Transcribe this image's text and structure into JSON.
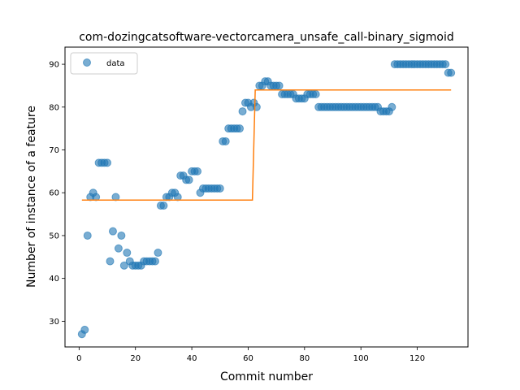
{
  "chart_data": {
    "type": "scatter",
    "title": "com-dozingcatsoftware-vectorcamera_unsafe_call-binary_sigmoid",
    "xlabel": "Commit number",
    "ylabel": "Number of instance of a feature",
    "xlim": [
      -5,
      138
    ],
    "ylim": [
      24,
      94
    ],
    "xticks": [
      0,
      20,
      40,
      60,
      80,
      100,
      120
    ],
    "yticks": [
      30,
      40,
      50,
      60,
      70,
      80,
      90
    ],
    "legend": {
      "placement": "top-left",
      "entries": [
        "data"
      ]
    },
    "colors": {
      "data": "#1f77b4",
      "fit": "#ff7f0e"
    },
    "series": [
      {
        "name": "data",
        "kind": "scatter",
        "points": [
          [
            1,
            27
          ],
          [
            2,
            28
          ],
          [
            3,
            50
          ],
          [
            4,
            59
          ],
          [
            5,
            60
          ],
          [
            6,
            59
          ],
          [
            7,
            67
          ],
          [
            8,
            67
          ],
          [
            9,
            67
          ],
          [
            10,
            67
          ],
          [
            11,
            44
          ],
          [
            12,
            51
          ],
          [
            13,
            59
          ],
          [
            14,
            47
          ],
          [
            15,
            50
          ],
          [
            16,
            43
          ],
          [
            17,
            46
          ],
          [
            18,
            44
          ],
          [
            19,
            43
          ],
          [
            20,
            43
          ],
          [
            21,
            43
          ],
          [
            22,
            43
          ],
          [
            23,
            44
          ],
          [
            24,
            44
          ],
          [
            25,
            44
          ],
          [
            26,
            44
          ],
          [
            27,
            44
          ],
          [
            28,
            46
          ],
          [
            29,
            57
          ],
          [
            30,
            57
          ],
          [
            31,
            59
          ],
          [
            32,
            59
          ],
          [
            33,
            60
          ],
          [
            34,
            60
          ],
          [
            35,
            59
          ],
          [
            36,
            64
          ],
          [
            37,
            64
          ],
          [
            38,
            63
          ],
          [
            39,
            63
          ],
          [
            40,
            65
          ],
          [
            41,
            65
          ],
          [
            42,
            65
          ],
          [
            43,
            60
          ],
          [
            44,
            61
          ],
          [
            45,
            61
          ],
          [
            46,
            61
          ],
          [
            47,
            61
          ],
          [
            48,
            61
          ],
          [
            49,
            61
          ],
          [
            50,
            61
          ],
          [
            51,
            72
          ],
          [
            52,
            72
          ],
          [
            53,
            75
          ],
          [
            54,
            75
          ],
          [
            55,
            75
          ],
          [
            56,
            75
          ],
          [
            57,
            75
          ],
          [
            58,
            79
          ],
          [
            59,
            81
          ],
          [
            60,
            81
          ],
          [
            61,
            80
          ],
          [
            62,
            81
          ],
          [
            63,
            80
          ],
          [
            64,
            85
          ],
          [
            65,
            85
          ],
          [
            66,
            86
          ],
          [
            67,
            86
          ],
          [
            68,
            85
          ],
          [
            69,
            85
          ],
          [
            70,
            85
          ],
          [
            71,
            85
          ],
          [
            72,
            83
          ],
          [
            73,
            83
          ],
          [
            74,
            83
          ],
          [
            75,
            83
          ],
          [
            76,
            83
          ],
          [
            77,
            82
          ],
          [
            78,
            82
          ],
          [
            79,
            82
          ],
          [
            80,
            82
          ],
          [
            81,
            83
          ],
          [
            82,
            83
          ],
          [
            83,
            83
          ],
          [
            84,
            83
          ],
          [
            85,
            80
          ],
          [
            86,
            80
          ],
          [
            87,
            80
          ],
          [
            88,
            80
          ],
          [
            89,
            80
          ],
          [
            90,
            80
          ],
          [
            91,
            80
          ],
          [
            92,
            80
          ],
          [
            93,
            80
          ],
          [
            94,
            80
          ],
          [
            95,
            80
          ],
          [
            96,
            80
          ],
          [
            97,
            80
          ],
          [
            98,
            80
          ],
          [
            99,
            80
          ],
          [
            100,
            80
          ],
          [
            101,
            80
          ],
          [
            102,
            80
          ],
          [
            103,
            80
          ],
          [
            104,
            80
          ],
          [
            105,
            80
          ],
          [
            106,
            80
          ],
          [
            107,
            79
          ],
          [
            108,
            79
          ],
          [
            109,
            79
          ],
          [
            110,
            79
          ],
          [
            111,
            80
          ],
          [
            112,
            90
          ],
          [
            113,
            90
          ],
          [
            114,
            90
          ],
          [
            115,
            90
          ],
          [
            116,
            90
          ],
          [
            117,
            90
          ],
          [
            118,
            90
          ],
          [
            119,
            90
          ],
          [
            120,
            90
          ],
          [
            121,
            90
          ],
          [
            122,
            90
          ],
          [
            123,
            90
          ],
          [
            124,
            90
          ],
          [
            125,
            90
          ],
          [
            126,
            90
          ],
          [
            127,
            90
          ],
          [
            128,
            90
          ],
          [
            129,
            90
          ],
          [
            130,
            90
          ],
          [
            131,
            88
          ],
          [
            132,
            88
          ]
        ]
      },
      {
        "name": "",
        "kind": "line",
        "points": [
          [
            1,
            58.3
          ],
          [
            61.5,
            58.3
          ],
          [
            62.5,
            84
          ],
          [
            132,
            84
          ]
        ]
      }
    ]
  }
}
